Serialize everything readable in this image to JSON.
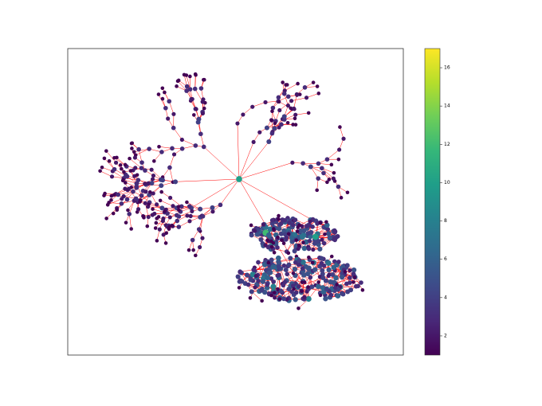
{
  "chart_data": {
    "type": "network",
    "edge_color": "#ff0000",
    "cmap": "viridis",
    "clim": [
      1,
      17
    ],
    "cticks": [
      2,
      4,
      6,
      8,
      10,
      12,
      14,
      16
    ]
  }
}
